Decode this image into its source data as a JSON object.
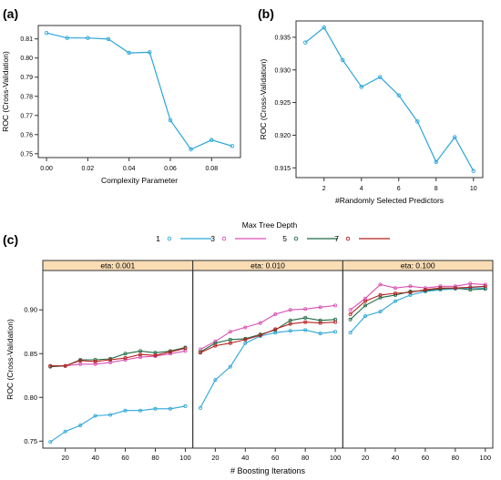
{
  "panels": {
    "a": {
      "label": "(a)"
    },
    "b": {
      "label": "(b)"
    },
    "c": {
      "label": "(c)"
    }
  },
  "chart_data": [
    {
      "id": "a",
      "type": "line",
      "xlabel": "Complexity Parameter",
      "ylabel": "ROC (Cross-Validation)",
      "xlim": [
        -0.004,
        0.094
      ],
      "ylim": [
        0.748,
        0.817
      ],
      "xticks": [
        0.0,
        0.02,
        0.04,
        0.06,
        0.08
      ],
      "xtick_labels": [
        "0.00",
        "0.02",
        "0.04",
        "0.06",
        "0.08"
      ],
      "yticks": [
        0.75,
        0.76,
        0.77,
        0.78,
        0.79,
        0.8,
        0.81
      ],
      "ytick_labels": [
        "0.75",
        "0.76",
        "0.77",
        "0.78",
        "0.79",
        "0.80",
        "0.81"
      ],
      "color": "#2CA6D8",
      "x": [
        0.0,
        0.01,
        0.02,
        0.03,
        0.04,
        0.05,
        0.06,
        0.07,
        0.08,
        0.09
      ],
      "y": [
        0.8131,
        0.8105,
        0.8105,
        0.8099,
        0.8027,
        0.803,
        0.7675,
        0.7523,
        0.7572,
        0.754
      ]
    },
    {
      "id": "b",
      "type": "line",
      "xlabel": "#Randomly Selected Predictors",
      "ylabel": "ROC (Cross-Validation)",
      "xlim": [
        0.5,
        10.5
      ],
      "ylim": [
        0.9135,
        0.9375
      ],
      "xticks": [
        2,
        4,
        6,
        8,
        10
      ],
      "xtick_labels": [
        "2",
        "4",
        "6",
        "8",
        "10"
      ],
      "yticks": [
        0.915,
        0.92,
        0.925,
        0.93,
        0.935
      ],
      "ytick_labels": [
        "0.915",
        "0.920",
        "0.925",
        "0.930",
        "0.935"
      ],
      "color": "#2CA6D8",
      "x": [
        1,
        2,
        3,
        4,
        5,
        6,
        7,
        8,
        9,
        10
      ],
      "y": [
        0.9342,
        0.9365,
        0.9315,
        0.9274,
        0.9289,
        0.9261,
        0.9221,
        0.9159,
        0.9197,
        0.9145
      ]
    },
    {
      "id": "c",
      "type": "line",
      "xlabel": "# Boosting Iterations",
      "ylabel": "ROC (Cross-Validation)",
      "legend_title": "Max Tree Depth",
      "legend_placement": "top",
      "xlim": [
        5,
        105
      ],
      "ylim": [
        0.742,
        0.945
      ],
      "xticks": [
        20,
        40,
        60,
        80,
        100
      ],
      "xtick_labels": [
        "20",
        "40",
        "60",
        "80",
        "100"
      ],
      "yticks": [
        0.75,
        0.8,
        0.85,
        0.9
      ],
      "ytick_labels": [
        "0.75",
        "0.80",
        "0.85",
        "0.90"
      ],
      "x": [
        10,
        20,
        30,
        40,
        50,
        60,
        70,
        80,
        90,
        100
      ],
      "strip_color": "#FADDB4",
      "facets": [
        {
          "title": "eta: 0.001",
          "series": [
            {
              "name": "1",
              "color": "#2CA6D8",
              "values": [
                0.749,
                0.761,
                0.768,
                0.779,
                0.78,
                0.785,
                0.785,
                0.787,
                0.787,
                0.79
              ]
            },
            {
              "name": "3",
              "color": "#D94FB3",
              "values": [
                0.836,
                0.836,
                0.838,
                0.838,
                0.84,
                0.843,
                0.846,
                0.847,
                0.85,
                0.853
              ]
            },
            {
              "name": "5",
              "color": "#1F6B45",
              "values": [
                0.835,
                0.836,
                0.843,
                0.843,
                0.844,
                0.85,
                0.853,
                0.851,
                0.853,
                0.857
              ]
            },
            {
              "name": "7",
              "color": "#B5211F",
              "values": [
                0.836,
                0.836,
                0.842,
                0.841,
                0.843,
                0.845,
                0.849,
                0.848,
                0.852,
                0.856
              ]
            }
          ]
        },
        {
          "title": "eta: 0.010",
          "series": [
            {
              "name": "1",
              "color": "#2CA6D8",
              "values": [
                0.788,
                0.82,
                0.835,
                0.862,
                0.87,
                0.874,
                0.876,
                0.877,
                0.873,
                0.875
              ]
            },
            {
              "name": "3",
              "color": "#D94FB3",
              "values": [
                0.855,
                0.864,
                0.875,
                0.88,
                0.885,
                0.895,
                0.9,
                0.901,
                0.903,
                0.905
              ]
            },
            {
              "name": "5",
              "color": "#1F6B45",
              "values": [
                0.852,
                0.862,
                0.866,
                0.867,
                0.872,
                0.877,
                0.888,
                0.891,
                0.888,
                0.889
              ]
            },
            {
              "name": "7",
              "color": "#B5211F",
              "values": [
                0.851,
                0.859,
                0.862,
                0.866,
                0.871,
                0.878,
                0.884,
                0.886,
                0.885,
                0.886
              ]
            }
          ]
        },
        {
          "title": "eta: 0.100",
          "series": [
            {
              "name": "1",
              "color": "#2CA6D8",
              "values": [
                0.874,
                0.893,
                0.898,
                0.91,
                0.917,
                0.921,
                0.923,
                0.924,
                0.925,
                0.925
              ]
            },
            {
              "name": "3",
              "color": "#D94FB3",
              "values": [
                0.9,
                0.913,
                0.929,
                0.925,
                0.927,
                0.925,
                0.927,
                0.927,
                0.93,
                0.929
              ]
            },
            {
              "name": "5",
              "color": "#1F6B45",
              "values": [
                0.889,
                0.905,
                0.914,
                0.917,
                0.921,
                0.922,
                0.924,
                0.925,
                0.923,
                0.924
              ]
            },
            {
              "name": "7",
              "color": "#B5211F",
              "values": [
                0.895,
                0.91,
                0.917,
                0.919,
                0.92,
                0.923,
                0.925,
                0.925,
                0.926,
                0.927
              ]
            }
          ]
        }
      ]
    }
  ]
}
